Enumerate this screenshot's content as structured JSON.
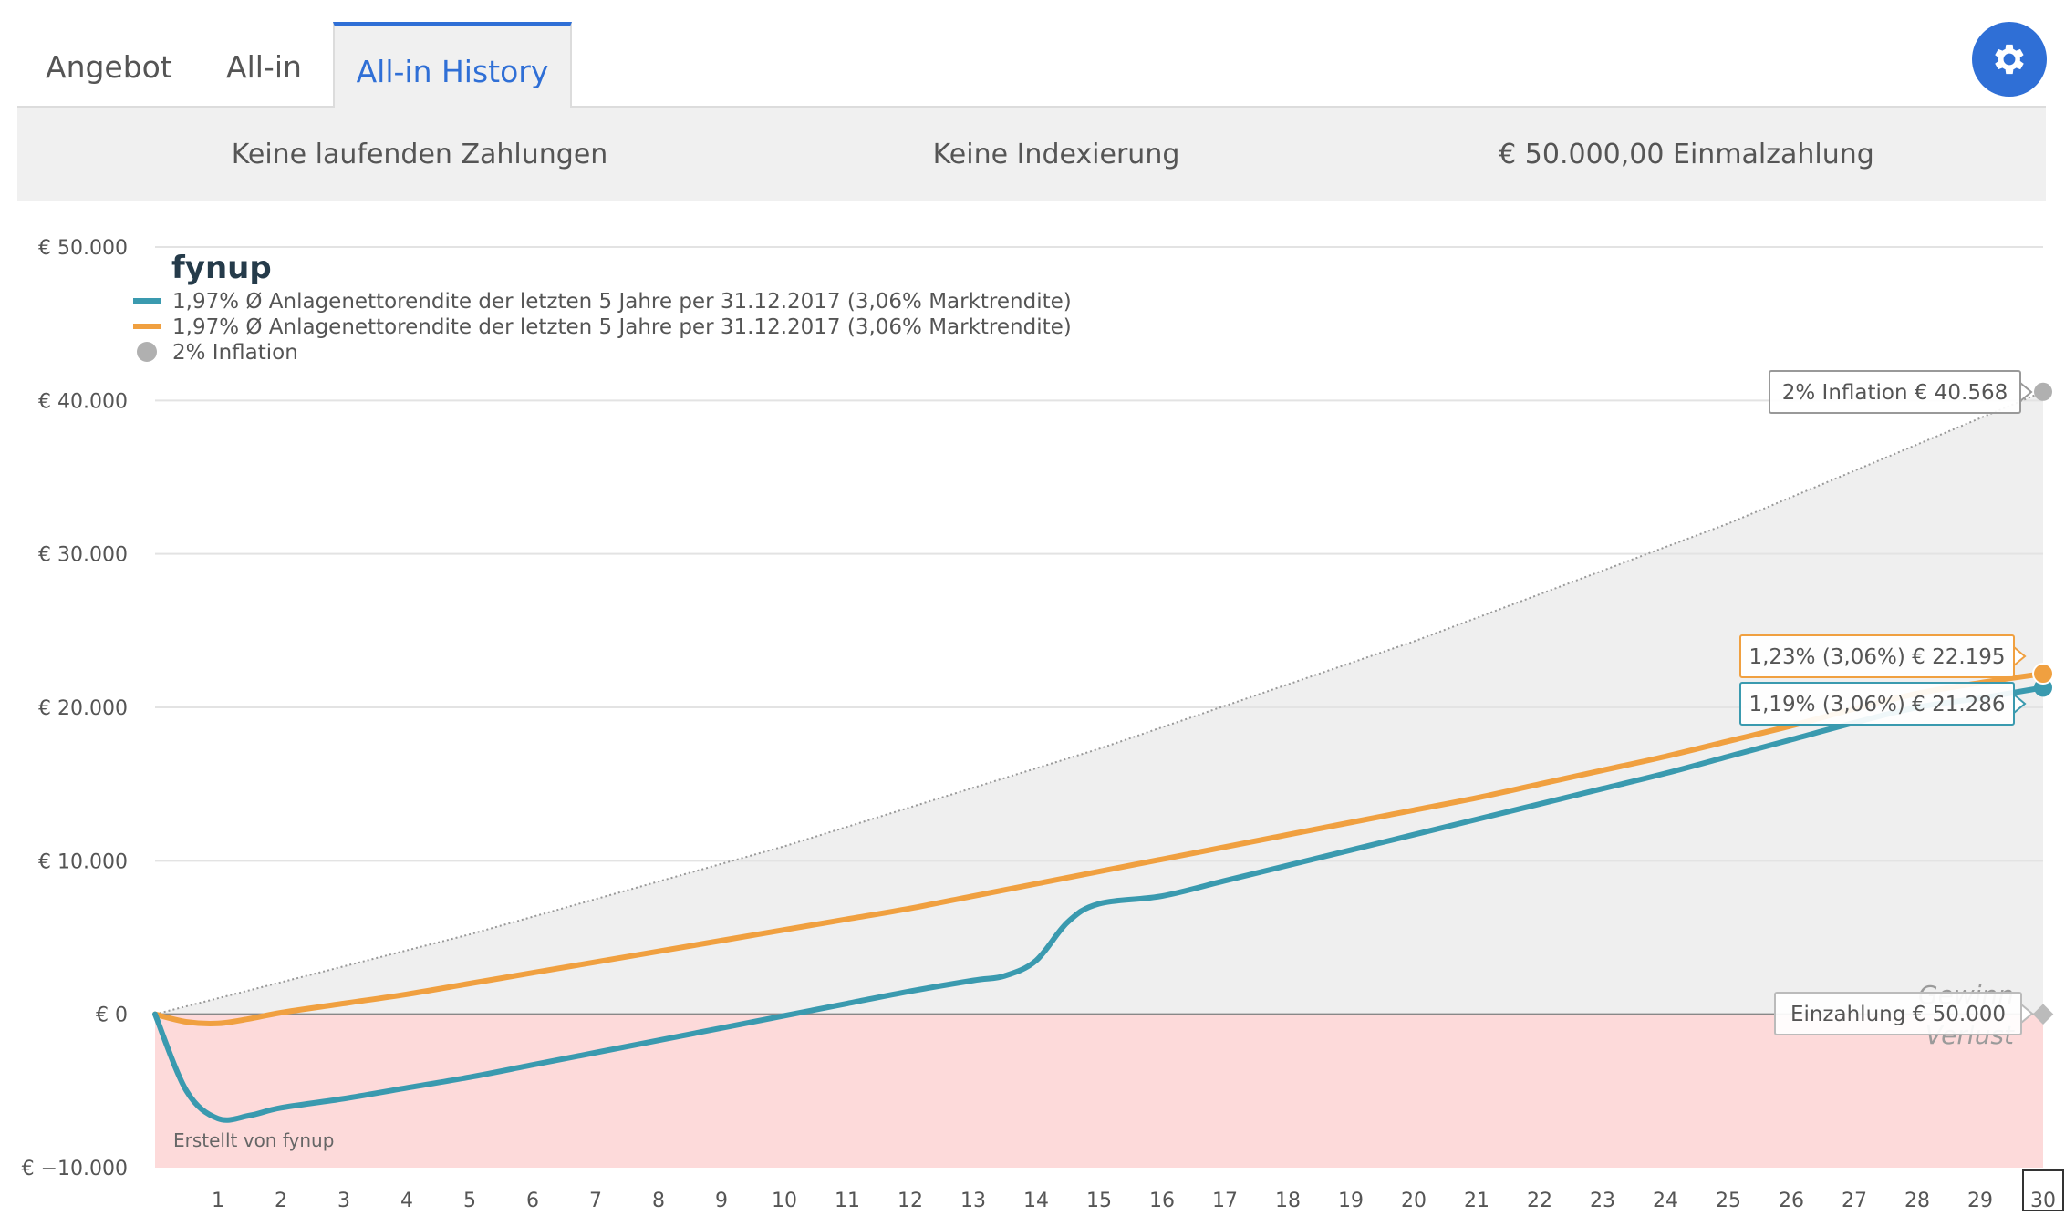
{
  "tabs": [
    {
      "label": "Angebot"
    },
    {
      "label": "All-in"
    },
    {
      "label": "All-in History"
    }
  ],
  "summary": {
    "payments": "Keine laufenden Zahlungen",
    "indexation": "Keine Indexierung",
    "deposit": "€ 50.000,00 Einmalzahlung"
  },
  "brand": {
    "logo_text": "fynup",
    "credit": "Erstellt von fynup"
  },
  "colors": {
    "accent": "#2f6fd6",
    "teal": "#3a9aaf",
    "orange": "#f0a040",
    "inflation": "#b0b0b0",
    "loss_fill": "#fddada",
    "gain_fill": "#efefef"
  },
  "chart_data": {
    "type": "line",
    "y_ticks": [
      "€ 50.000",
      "€ 40.000",
      "€ 30.000",
      "€ 20.000",
      "€ 10.000",
      "€ 0",
      "€ −10.000"
    ],
    "ylim": [
      -10000,
      50000
    ],
    "x_ticks": [
      "1",
      "2",
      "3",
      "4",
      "5",
      "6",
      "7",
      "8",
      "9",
      "10",
      "11",
      "12",
      "13",
      "14",
      "15",
      "16",
      "17",
      "18",
      "19",
      "20",
      "21",
      "22",
      "23",
      "24",
      "25",
      "26",
      "27",
      "28",
      "29",
      "30"
    ],
    "xlim": [
      0,
      30
    ],
    "legend": [
      {
        "label": "1,97% Ø Anlagenettorendite der letzten 5 Jahre per 31.12.2017 (3,06% Marktrendite)",
        "color": "#3a9aaf",
        "symbol": "line"
      },
      {
        "label": "1,97% Ø Anlagenettorendite der letzten 5 Jahre per 31.12.2017 (3,06% Marktrendite)",
        "color": "#f0a040",
        "symbol": "line"
      },
      {
        "label": "2% Inflation",
        "color": "#b0b0b0",
        "symbol": "dot"
      }
    ],
    "series": [
      {
        "color": "#3a9aaf",
        "x": [
          0,
          0.5,
          1,
          1.5,
          2,
          3,
          4,
          5,
          6,
          7,
          8,
          9,
          10,
          11,
          12,
          13,
          13.5,
          14,
          14.5,
          15,
          16,
          17,
          18,
          19,
          20,
          21,
          22,
          23,
          24,
          25,
          26,
          27,
          28,
          29,
          30
        ],
        "y": [
          0,
          -5000,
          -6800,
          -6600,
          -6100,
          -5500,
          -4800,
          -4100,
          -3300,
          -2500,
          -1700,
          -900,
          -100,
          700,
          1500,
          2200,
          2500,
          3500,
          6000,
          7200,
          7700,
          8700,
          9700,
          10700,
          11700,
          12700,
          13700,
          14700,
          15700,
          16800,
          17900,
          19000,
          20000,
          20600,
          21286
        ]
      },
      {
        "color": "#f0a040",
        "x": [
          0,
          0.5,
          1,
          1.5,
          2,
          3,
          4,
          5,
          6,
          7,
          8,
          9,
          10,
          11,
          12,
          13,
          14,
          15,
          16,
          17,
          18,
          19,
          20,
          21,
          22,
          23,
          24,
          25,
          26,
          27,
          28,
          29,
          30
        ],
        "y": [
          0,
          -500,
          -600,
          -300,
          100,
          700,
          1300,
          2000,
          2700,
          3400,
          4100,
          4800,
          5500,
          6200,
          6900,
          7700,
          8500,
          9300,
          10100,
          10900,
          11700,
          12500,
          13300,
          14100,
          15000,
          15900,
          16800,
          17800,
          18800,
          19900,
          20900,
          21600,
          22195
        ]
      },
      {
        "color": "#b0b0b0",
        "x": [
          0,
          5,
          10,
          15,
          20,
          25,
          30
        ],
        "y": [
          0,
          5204,
          10950,
          17300,
          24295,
          31985,
          40568
        ]
      }
    ],
    "tooltips": [
      {
        "text": "2% Inflation € 40.568",
        "value": 40568,
        "color": "#999999"
      },
      {
        "text": "1,23% (3,06%) € 22.195",
        "value": 22195,
        "color": "#f0a040"
      },
      {
        "text": "1,19% (3,06%) € 21.286",
        "value": 21286,
        "color": "#3a9aaf"
      },
      {
        "text": "Einzahlung € 50.000",
        "value": 0,
        "color": "#bbbbbb"
      }
    ],
    "zone_labels": {
      "gain": "Gewinn",
      "loss": "Verlust"
    },
    "highlighted_x": "30"
  }
}
